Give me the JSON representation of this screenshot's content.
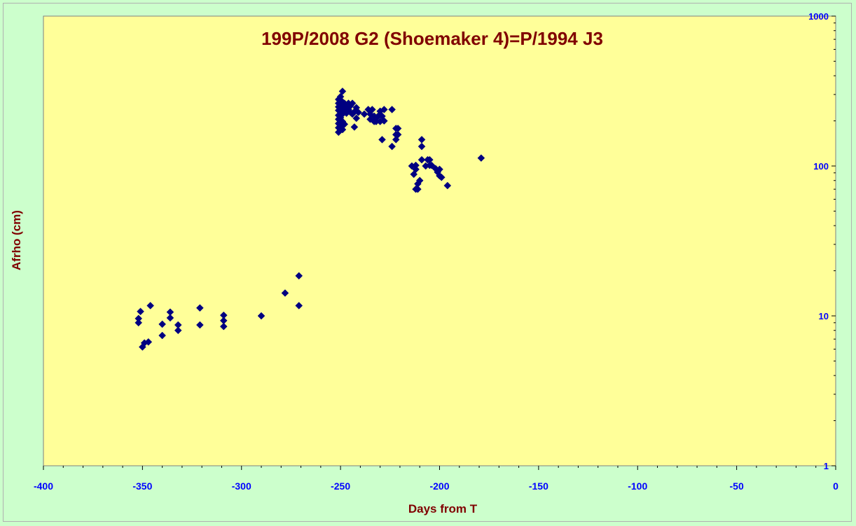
{
  "chart_data": {
    "type": "scatter",
    "title": "199P/2008 G2 (Shoemaker 4)=P/1994 J3",
    "xlabel": "Days from T",
    "ylabel": "Afrho (cm)",
    "xlim": [
      -400,
      0
    ],
    "ylim": [
      1,
      1000
    ],
    "y_scale": "log",
    "x_ticks": [
      -400,
      -350,
      -300,
      -250,
      -200,
      -150,
      -100,
      -50,
      0
    ],
    "x_tick_labels": [
      "-400",
      "-350",
      "-300",
      "-250",
      "-200",
      "-150",
      "-100",
      "-50",
      "0"
    ],
    "y_ticks": [
      1,
      10,
      100,
      1000
    ],
    "y_tick_labels": [
      "1",
      "10",
      "100",
      "1000"
    ],
    "y_axis_side": "right",
    "grid": false,
    "legend": "none",
    "marker": "diamond",
    "colors": {
      "background": "#ccffcc",
      "plot_area": "#ffff99",
      "marker": "#000080",
      "title": "#800000",
      "tick_labels": "#0000ff"
    },
    "series": [
      {
        "points": [
          [
            -352,
            9.0
          ],
          [
            -352,
            9.6
          ],
          [
            -351,
            10.7
          ],
          [
            -350,
            6.2
          ],
          [
            -349,
            6.6
          ],
          [
            -347,
            6.7
          ],
          [
            -346,
            11.7
          ],
          [
            -340,
            7.4
          ],
          [
            -340,
            8.8
          ],
          [
            -336,
            9.7
          ],
          [
            -336,
            10.6
          ],
          [
            -332,
            8.0
          ],
          [
            -332,
            8.7
          ],
          [
            -321,
            8.7
          ],
          [
            -321,
            11.3
          ],
          [
            -309,
            8.5
          ],
          [
            -309,
            9.3
          ],
          [
            -309,
            10.1
          ],
          [
            -290,
            10.0
          ],
          [
            -278,
            14.2
          ],
          [
            -271,
            11.7
          ],
          [
            -271,
            18.5
          ],
          [
            -251,
            168
          ],
          [
            -251,
            180
          ],
          [
            -251,
            192
          ],
          [
            -251,
            205
          ],
          [
            -251,
            218
          ],
          [
            -251,
            235
          ],
          [
            -251,
            248
          ],
          [
            -251,
            262
          ],
          [
            -251,
            278
          ],
          [
            -250,
            185
          ],
          [
            -250,
            210
          ],
          [
            -250,
            230
          ],
          [
            -250,
            255
          ],
          [
            -250,
            290
          ],
          [
            -249,
            175
          ],
          [
            -249,
            198
          ],
          [
            -249,
            222
          ],
          [
            -249,
            245
          ],
          [
            -249,
            268
          ],
          [
            -249,
            315
          ],
          [
            -248,
            190
          ],
          [
            -248,
            238
          ],
          [
            -248,
            262
          ],
          [
            -247,
            250
          ],
          [
            -247,
            225
          ],
          [
            -246,
            262
          ],
          [
            -246,
            238
          ],
          [
            -245,
            228
          ],
          [
            -245,
            252
          ],
          [
            -244,
            262
          ],
          [
            -244,
            222
          ],
          [
            -243,
            182
          ],
          [
            -243,
            230
          ],
          [
            -242,
            208
          ],
          [
            -242,
            245
          ],
          [
            -241,
            228
          ],
          [
            -238,
            222
          ],
          [
            -236,
            238
          ],
          [
            -235,
            205
          ],
          [
            -235,
            222
          ],
          [
            -234,
            238
          ],
          [
            -233,
            198
          ],
          [
            -233,
            215
          ],
          [
            -232,
            198
          ],
          [
            -231,
            215
          ],
          [
            -230,
            198
          ],
          [
            -230,
            232
          ],
          [
            -229,
            215
          ],
          [
            -229,
            150
          ],
          [
            -228,
            200
          ],
          [
            -228,
            238
          ],
          [
            -224,
            238
          ],
          [
            -224,
            135
          ],
          [
            -222,
            150
          ],
          [
            -222,
            162
          ],
          [
            -222,
            178
          ],
          [
            -221,
            178
          ],
          [
            -221,
            162
          ],
          [
            -214,
            100
          ],
          [
            -213,
            88
          ],
          [
            -212,
            95
          ],
          [
            -212,
            101
          ],
          [
            -212,
            70
          ],
          [
            -211,
            70
          ],
          [
            -211,
            76
          ],
          [
            -210,
            80
          ],
          [
            -209,
            150
          ],
          [
            -209,
            135
          ],
          [
            -209,
            110
          ],
          [
            -207,
            100
          ],
          [
            -206,
            110
          ],
          [
            -205,
            110
          ],
          [
            -205,
            101
          ],
          [
            -204,
            101
          ],
          [
            -202,
            96
          ],
          [
            -201,
            91
          ],
          [
            -200,
            95
          ],
          [
            -200,
            86
          ],
          [
            -199,
            84
          ],
          [
            -196,
            74
          ],
          [
            -179,
            113
          ]
        ]
      }
    ]
  }
}
